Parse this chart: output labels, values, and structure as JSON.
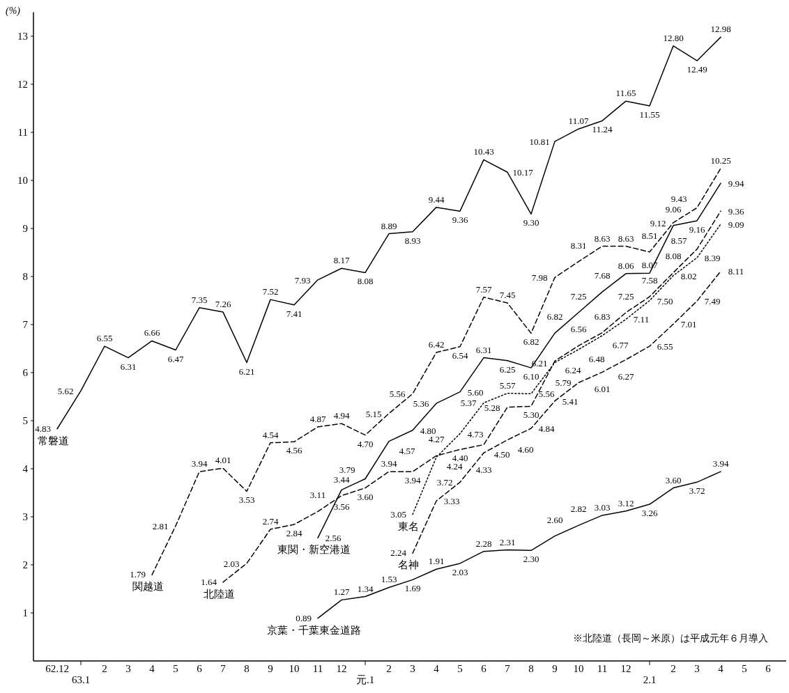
{
  "chart_data": {
    "type": "line",
    "ylabel": "(%)",
    "categories": [
      "62.12",
      "63.1",
      "2",
      "3",
      "4",
      "5",
      "6",
      "7",
      "8",
      "9",
      "10",
      "11",
      "12",
      "元.1",
      "2",
      "3",
      "4",
      "5",
      "6",
      "7",
      "8",
      "9",
      "10",
      "11",
      "12",
      "2.1",
      "2",
      "3",
      "4",
      "5",
      "6"
    ],
    "ylim": [
      0,
      13.5
    ],
    "yticks": [
      1,
      2,
      3,
      4,
      5,
      6,
      7,
      8,
      9,
      10,
      11,
      12,
      13
    ],
    "annotations": [
      "※北陸道（長岡～米原）は平成元年６月導入"
    ],
    "series": [
      {
        "name": "常磐道",
        "color": "#000000",
        "line_style": "solid",
        "values": [
          4.83,
          5.62,
          6.55,
          6.31,
          6.66,
          6.47,
          7.35,
          7.26,
          6.21,
          7.52,
          7.41,
          7.93,
          8.17,
          8.08,
          8.89,
          8.93,
          9.44,
          9.36,
          10.43,
          10.17,
          9.3,
          10.81,
          11.07,
          11.24,
          11.65,
          11.55,
          12.8,
          12.49,
          12.98,
          null,
          null
        ],
        "value_labels": [
          "4.83",
          "5.62",
          "6.55",
          "6.31",
          "6.66",
          "6.47",
          "7.35",
          "7.26",
          "6.21",
          "7.52",
          "7.41",
          "7.93",
          "8.17",
          "8.08",
          "8.89",
          "8.93",
          "9.44",
          "9.36",
          "10.43",
          "10.17",
          "9.30",
          "10.81",
          "11.07",
          "11.24",
          "11.65",
          "11.55",
          "12.80",
          "12.49",
          "12.98",
          null,
          null
        ]
      },
      {
        "name": "関越道",
        "color": "#000000",
        "line_style": "dashed",
        "values": [
          null,
          null,
          null,
          null,
          1.79,
          2.81,
          3.94,
          4.01,
          3.53,
          4.54,
          4.56,
          4.87,
          4.94,
          4.7,
          5.15,
          5.56,
          6.42,
          6.54,
          7.57,
          7.45,
          6.82,
          7.98,
          8.31,
          8.63,
          8.63,
          8.51,
          9.12,
          9.43,
          10.25,
          null,
          null
        ],
        "value_labels": [
          null,
          null,
          null,
          null,
          "1.79",
          "2.81",
          "3.94",
          "4.01",
          "3.53",
          "4.54",
          "4.56",
          "4.87",
          "4.94",
          "4.70",
          "5.15",
          "5.56",
          "6.42",
          "6.54",
          "7.57",
          "7.45",
          "6.82",
          "7.98",
          "8.31",
          "8.63",
          "8.63",
          "8.51",
          "9.12",
          "9.43",
          "10.25",
          null,
          null
        ]
      },
      {
        "name": "北陸道",
        "color": "#000000",
        "line_style": "dashed",
        "values": [
          null,
          null,
          null,
          null,
          null,
          null,
          null,
          1.64,
          2.03,
          2.74,
          2.84,
          3.11,
          3.44,
          3.6,
          3.94,
          3.94,
          4.27,
          4.4,
          4.5,
          5.28,
          5.3,
          6.24,
          6.56,
          6.83,
          7.25,
          7.58,
          8.08,
          8.57,
          9.36,
          null,
          null
        ],
        "value_labels": [
          null,
          null,
          null,
          null,
          null,
          null,
          null,
          "1.64",
          "2.03",
          "2.74",
          "2.84",
          "3.11",
          "3.44",
          "3.60",
          "3.94",
          "3.94",
          "4.27",
          "4.40",
          "4.50",
          "5.28",
          "5.30",
          "6.24",
          "6.56",
          "6.83",
          "7.25",
          "7.58",
          "8.08",
          "8.57",
          "9.36",
          null,
          null
        ]
      },
      {
        "name": "東関・新空港道",
        "color": "#000000",
        "line_style": "solid",
        "values": [
          null,
          null,
          null,
          null,
          null,
          null,
          null,
          null,
          null,
          null,
          null,
          2.56,
          3.56,
          3.79,
          4.57,
          4.8,
          5.36,
          5.6,
          6.31,
          6.25,
          6.1,
          6.82,
          7.25,
          7.68,
          8.06,
          8.07,
          9.06,
          9.16,
          9.94,
          null,
          null
        ],
        "value_labels": [
          null,
          null,
          null,
          null,
          null,
          null,
          null,
          null,
          null,
          null,
          null,
          "2.56",
          "3.56",
          "3.79",
          "4.57",
          "4.80",
          "5.36",
          "5.60",
          "6.31",
          "6.25",
          "6.10",
          "6.82",
          "7.25",
          "7.68",
          "8.06",
          "8.07",
          "9.06",
          "9.16",
          "9.94",
          null,
          null
        ]
      },
      {
        "name": "東名",
        "color": "#000000",
        "line_style": "dotted",
        "values": [
          null,
          null,
          null,
          null,
          null,
          null,
          null,
          null,
          null,
          null,
          null,
          null,
          null,
          null,
          null,
          3.05,
          4.24,
          4.73,
          5.37,
          5.57,
          5.56,
          6.21,
          6.48,
          6.77,
          7.11,
          7.5,
          8.02,
          8.39,
          9.09,
          null,
          null
        ],
        "value_labels": [
          null,
          null,
          null,
          null,
          null,
          null,
          null,
          null,
          null,
          null,
          null,
          null,
          null,
          null,
          null,
          "3.05",
          "4.24",
          "4.73",
          "5.37",
          "5.57",
          "5.56",
          "6.21",
          "6.48",
          "6.77",
          "7.11",
          "7.50",
          "8.02",
          "8.39",
          "9.09",
          null,
          null
        ]
      },
      {
        "name": "名神",
        "color": "#000000",
        "line_style": "dashed",
        "values": [
          null,
          null,
          null,
          null,
          null,
          null,
          null,
          null,
          null,
          null,
          null,
          null,
          null,
          null,
          null,
          2.24,
          3.33,
          3.72,
          4.33,
          4.6,
          4.84,
          5.41,
          5.79,
          6.01,
          6.27,
          6.55,
          7.01,
          7.49,
          8.11,
          null,
          null
        ],
        "value_labels": [
          null,
          null,
          null,
          null,
          null,
          null,
          null,
          null,
          null,
          null,
          null,
          null,
          null,
          null,
          null,
          "2.24",
          "3.33",
          "3.72",
          "4.33",
          "4.60",
          "4.84",
          "5.41",
          "5.79",
          "6.01",
          "6.27",
          "6.55",
          "7.01",
          "7.49",
          "8.11",
          null,
          null
        ]
      },
      {
        "name": "京葉・千葉東金道路",
        "color": "#000000",
        "line_style": "solid",
        "values": [
          null,
          null,
          null,
          null,
          null,
          null,
          null,
          null,
          null,
          null,
          null,
          0.89,
          1.27,
          1.34,
          1.53,
          1.69,
          1.91,
          2.03,
          2.28,
          2.31,
          2.3,
          2.6,
          2.82,
          3.03,
          3.12,
          3.26,
          3.6,
          3.72,
          3.94,
          null,
          null
        ],
        "value_labels": [
          null,
          null,
          null,
          null,
          null,
          null,
          null,
          null,
          null,
          null,
          null,
          "0.89",
          "1.27",
          "1.34",
          "1.53",
          "1.69",
          "1.91",
          "2.03",
          "2.28",
          "2.31",
          "2.30",
          "2.60",
          "2.82",
          "3.03",
          "3.12",
          "3.26",
          "3.60",
          "3.72",
          "3.94",
          null,
          null
        ]
      }
    ]
  }
}
